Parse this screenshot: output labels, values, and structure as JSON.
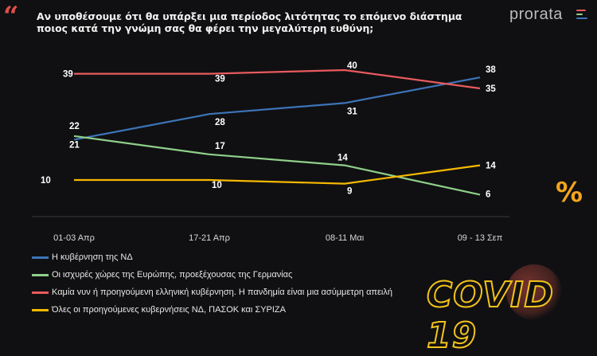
{
  "header": {
    "title": "Αν υποθέσουμε ότι θα υπάρξει μια περίοδος λιτότητας το επόμενο διάστημα ποιος κατά την γνώμη σας θα φέρει την μεγαλύτερη ευθύνη;",
    "brand": "prorata",
    "quote_icon": "quote-icon",
    "quote_color": "#e0504a"
  },
  "chart_data": {
    "type": "line",
    "categories": [
      "01-03 Απρ",
      "17-21 Απρ",
      "08-11 Μαι",
      "09 - 13 Σεπ"
    ],
    "ylim": [
      0,
      45
    ],
    "grid": false,
    "legend_position": "bottom-left",
    "series": [
      {
        "name": "Η κυβέρνηση της ΝΔ",
        "color": "#3d74b8",
        "values": [
          21,
          28,
          31,
          38
        ]
      },
      {
        "name": "Οι ισχυρές χώρες της Ευρώπης, προεξέχουσας της Γερμανίας",
        "color": "#8fd08a",
        "values": [
          22,
          17,
          14,
          6
        ]
      },
      {
        "name": "Καμία vυν ή προηγούμενη ελληνική κυβέρνηση. Η πανδημία είναι μια ασύμμετρη απειλή",
        "color": "#e85a5e",
        "values": [
          39,
          39,
          40,
          35
        ]
      },
      {
        "name": "Όλες οι προηγούμενες κυβερνήσεις ΝΔ, ΠΑΣΟΚ και ΣΥΡΙΖΑ",
        "color": "#f5b800",
        "values": [
          10,
          10,
          9,
          14
        ]
      }
    ]
  },
  "decor": {
    "percent_sign": "%",
    "covid_text": "COVID 19",
    "accent": "#f3a51c"
  }
}
